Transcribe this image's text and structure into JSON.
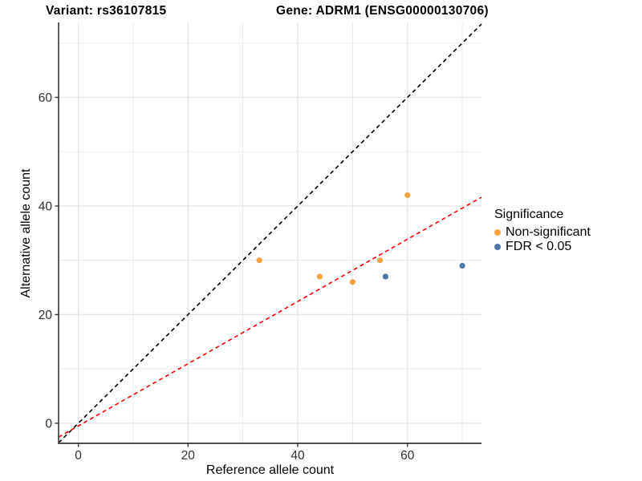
{
  "chart_data": {
    "type": "scatter",
    "title_variant": "Variant: rs36107815",
    "title_gene": "Gene: ADRM1 (ENSG00000130706)",
    "xlabel": "Reference allele count",
    "ylabel": "Alternative allele count",
    "xlim": [
      -3.6,
      73.5
    ],
    "ylim": [
      -3.7,
      73.8
    ],
    "xticks": [
      0,
      20,
      40,
      60
    ],
    "yticks": [
      0,
      20,
      40,
      60
    ],
    "minor_xticks": [
      10,
      30,
      50,
      70
    ],
    "minor_yticks": [
      10,
      30,
      50,
      70
    ],
    "grid": "major+minor",
    "background": "#ffffff",
    "gridline_color": "#e5e5e5",
    "axis_line_color": "#4d4d4d",
    "tick_label_color": "#303030",
    "series": [
      {
        "name": "Non-significant",
        "color": "#F9A242",
        "points": [
          [
            33,
            30
          ],
          [
            44,
            27
          ],
          [
            50,
            26
          ],
          [
            55,
            30
          ],
          [
            60,
            42
          ]
        ]
      },
      {
        "name": "FDR < 0.05",
        "color": "#4E79A7",
        "points": [
          [
            56,
            27
          ],
          [
            70,
            29
          ]
        ]
      }
    ],
    "lines": [
      {
        "name": "identity-line",
        "style": "dashed",
        "color": "#000000",
        "slope": 1,
        "intercept": 0
      },
      {
        "name": "fit-line",
        "style": "dashed",
        "color": "#FF0000",
        "slope": 0.573,
        "intercept": -0.5
      }
    ],
    "legend": {
      "title": "Significance",
      "position": "right",
      "items": [
        {
          "label": "Non-significant",
          "color": "#F9A242"
        },
        {
          "label": "FDR < 0.05",
          "color": "#4E79A7"
        }
      ]
    }
  }
}
